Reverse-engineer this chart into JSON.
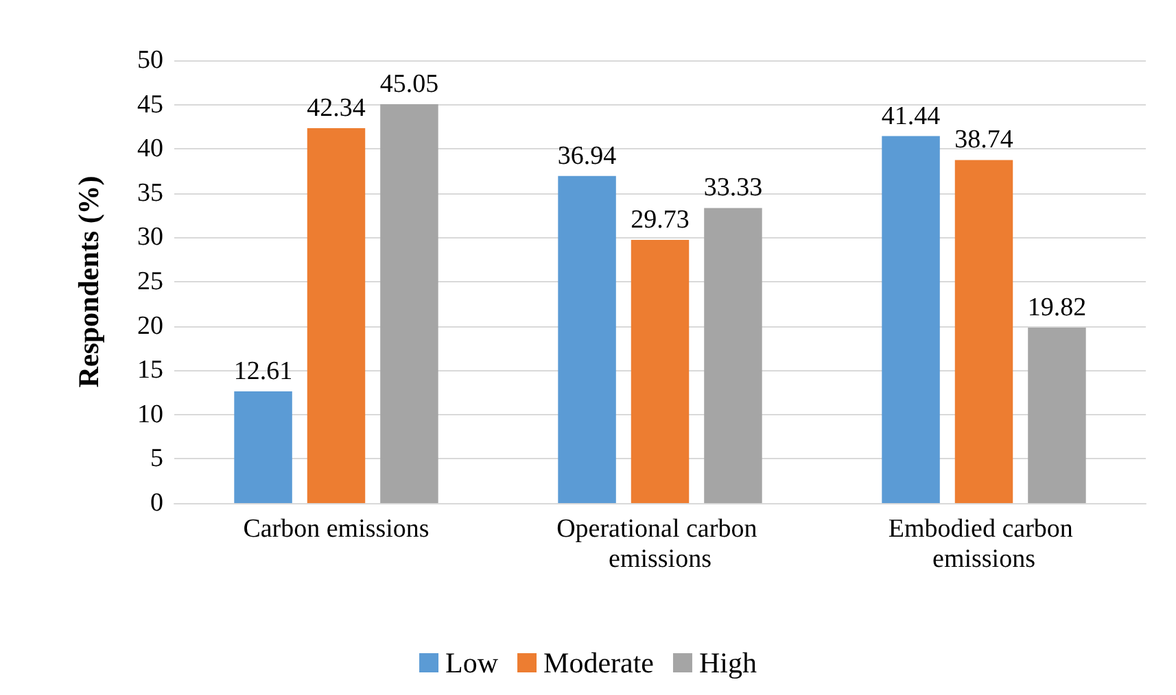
{
  "chart_data": {
    "type": "bar",
    "ylabel": "Respondents (%)",
    "categories": [
      "Carbon emissions",
      "Operational carbon emissions",
      "Embodied carbon emissions"
    ],
    "series": [
      {
        "name": "Low",
        "color": "#5b9bd5",
        "values": [
          12.61,
          36.94,
          41.44
        ]
      },
      {
        "name": "Moderate",
        "color": "#ed7d31",
        "values": [
          42.34,
          29.73,
          38.74
        ]
      },
      {
        "name": "High",
        "color": "#a5a5a5",
        "values": [
          45.05,
          33.33,
          19.82
        ]
      }
    ],
    "ylim": [
      0,
      50
    ],
    "yticks": [
      0,
      5,
      10,
      15,
      20,
      25,
      30,
      35,
      40,
      45,
      50
    ],
    "grid": "y",
    "legend": "bottom",
    "data_labels": true
  }
}
